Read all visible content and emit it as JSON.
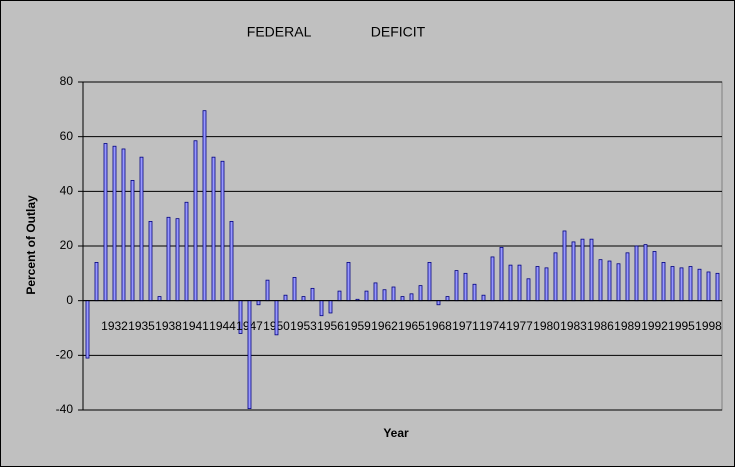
{
  "chart_data": {
    "type": "bar",
    "title": "FEDERAL DEFICIT",
    "x_label": "Year",
    "y_label": "Percent of Outlay",
    "categories": [
      null,
      null,
      null,
      "1932",
      null,
      null,
      "1935",
      null,
      null,
      "1938",
      null,
      null,
      "1941",
      null,
      null,
      "1944",
      null,
      null,
      "1947",
      null,
      null,
      "1950",
      null,
      null,
      "1953",
      null,
      null,
      "1956",
      null,
      null,
      "1959",
      null,
      null,
      "1962",
      null,
      null,
      "1965",
      null,
      null,
      "1968",
      null,
      null,
      "1971",
      null,
      null,
      "1974",
      null,
      null,
      "1977",
      null,
      null,
      "1980",
      null,
      null,
      "1983",
      null,
      null,
      "1986",
      null,
      null,
      "1989",
      null,
      null,
      "1992",
      null,
      null,
      "1995",
      null,
      null,
      "1998",
      null
    ],
    "values": [
      -21,
      14,
      57.5,
      56.5,
      55.5,
      44,
      52.5,
      29,
      1.5,
      30.5,
      30,
      36,
      58.5,
      69.5,
      52.5,
      51,
      29,
      -12,
      -39.5,
      -1.5,
      7.5,
      -12.5,
      2,
      8.5,
      1.5,
      4.5,
      -5.5,
      -4.5,
      3.5,
      14,
      0.5,
      3.5,
      6.5,
      4,
      5,
      1.5,
      2.5,
      5.5,
      14,
      -1.5,
      1.5,
      11,
      10,
      6,
      2,
      16,
      19.5,
      13,
      13,
      8,
      12.5,
      12,
      17.5,
      25.5,
      21.5,
      22.5,
      22.5,
      15,
      14.5,
      13.5,
      17.5,
      20,
      20.5,
      18,
      14,
      12.5,
      12,
      12.5,
      11.5,
      10.5,
      10
    ],
    "color": "#9999ff",
    "ylim": [
      -40,
      80
    ],
    "yticks": [
      -40,
      -20,
      0,
      20,
      40,
      60,
      80
    ],
    "grid": true
  }
}
